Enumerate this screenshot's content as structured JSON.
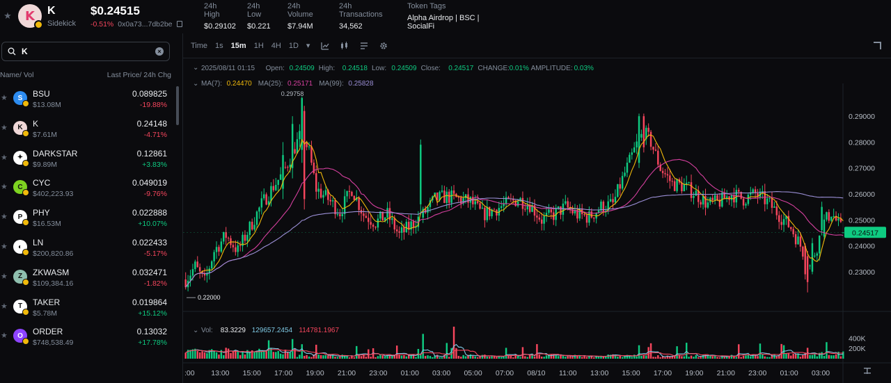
{
  "header": {
    "symbol": "K",
    "name": "Sidekick",
    "price": "$0.24515",
    "change": "-0.51%",
    "address": "0x0a73...7db2be",
    "stats": [
      {
        "label": "24h High",
        "value": "$0.29102"
      },
      {
        "label": "24h Low",
        "value": "$0.221"
      },
      {
        "label": "24h Volume",
        "value": "$7.94M"
      },
      {
        "label": "24h Transactions",
        "value": "34,562"
      },
      {
        "label": "Token Tags",
        "value": "Alpha Airdrop | BSC | SocialFi"
      }
    ]
  },
  "sidebar": {
    "search_value": "K",
    "col_left": "Name/ Vol",
    "col_right": "Last Price/ 24h Chg",
    "rows": [
      {
        "name": "BSU",
        "vol": "$13.08M",
        "price": "0.089825",
        "chg": "-19.88%",
        "up": false,
        "icon_color": "#2d8cf0",
        "icon": "S"
      },
      {
        "name": "K",
        "vol": "$7.61M",
        "price": "0.24148",
        "chg": "-4.71%",
        "up": false,
        "icon_color": "#f0d8d8",
        "icon": "K"
      },
      {
        "name": "DARKSTAR",
        "vol": "$9.89M",
        "price": "0.12861",
        "chg": "+3.83%",
        "up": true,
        "icon_color": "#ffffff",
        "icon": "✦"
      },
      {
        "name": "CYC",
        "vol": "$402,223.93",
        "price": "0.049019",
        "chg": "-9.76%",
        "up": false,
        "icon_color": "#7ed321",
        "icon": "C"
      },
      {
        "name": "PHY",
        "vol": "$16.53M",
        "price": "0.022888",
        "chg": "+10.07%",
        "up": true,
        "icon_color": "#ffffff",
        "icon": "P"
      },
      {
        "name": "LN",
        "vol": "$200,820.86",
        "price": "0.022433",
        "chg": "-5.17%",
        "up": false,
        "icon_color": "#ffffff",
        "icon": "◐"
      },
      {
        "name": "ZKWASM",
        "vol": "$109,384.16",
        "price": "0.032471",
        "chg": "-1.82%",
        "up": false,
        "icon_color": "#8fbfae",
        "icon": "Z"
      },
      {
        "name": "TAKER",
        "vol": "$5.78M",
        "price": "0.019864",
        "chg": "+15.12%",
        "up": true,
        "icon_color": "#ffffff",
        "icon": "T"
      },
      {
        "name": "ORDER",
        "vol": "$748,538.49",
        "price": "0.13032",
        "chg": "+17.78%",
        "up": true,
        "icon_color": "#8e44ff",
        "icon": "O"
      }
    ]
  },
  "toolbar": {
    "time_label": "Time",
    "intervals": [
      "1s",
      "15m",
      "1H",
      "4H",
      "1D"
    ],
    "active": "15m"
  },
  "ohlc": {
    "date": "2025/08/11 01:15",
    "open_label": "Open:",
    "open": "0.24509",
    "high_label": "High:",
    "high": "0.24518",
    "low_label": "Low:",
    "low": "0.24509",
    "close_label": "Close:",
    "close": "0.24517",
    "change_label": "CHANGE:",
    "change": "0.01%",
    "amp_label": "AMPLITUDE:",
    "amp": "0.03%"
  },
  "ma": {
    "ma7_label": "MA(7):",
    "ma7": "0.24470",
    "ma25_label": "MA(25):",
    "ma25": "0.25171",
    "ma99_label": "MA(99):",
    "ma99": "0.25828"
  },
  "vol": {
    "label": "Vol:",
    "v1": "83.3229",
    "v2": "129657.2454",
    "v3": "114781.1967"
  },
  "colors": {
    "up": "#0ecb81",
    "down": "#f6465d",
    "ma7": "#f0b90b",
    "ma25": "#d6409f",
    "ma99": "#9b8fd6",
    "vol_ma": "#7ec8e3"
  },
  "chart_data": {
    "type": "candlestick",
    "price_ticks": [
      "0.29000",
      "0.28000",
      "0.27000",
      "0.26000",
      "0.25000",
      "0.24000",
      "0.23000"
    ],
    "price_tick_values": [
      0.29,
      0.28,
      0.27,
      0.26,
      0.25,
      0.24,
      0.23
    ],
    "ylim": [
      0.2195,
      0.3005
    ],
    "current_price": "0.24517",
    "current_price_value": 0.24517,
    "high_marker": "0.29758",
    "high_marker_value": 0.29758,
    "low_marker": "0.22000",
    "low_marker_value": 0.22,
    "vol_ticks": [
      "400K",
      "200K"
    ],
    "vol_tick_values": [
      400000,
      200000
    ],
    "vol_max": 700000,
    "x_ticks": [
      ":00",
      "13:00",
      "15:00",
      "17:00",
      "19:00",
      "21:00",
      "23:00",
      "01:00",
      "03:00",
      "05:00",
      "07:00",
      "08/10",
      "11:00",
      "13:00",
      "15:00",
      "17:00",
      "19:00",
      "21:00",
      "23:00",
      "01:00",
      "03:00"
    ],
    "shape_points": [
      [
        0,
        0.227
      ],
      [
        4,
        0.232
      ],
      [
        8,
        0.226
      ],
      [
        12,
        0.238
      ],
      [
        17,
        0.244
      ],
      [
        22,
        0.238
      ],
      [
        27,
        0.247
      ],
      [
        32,
        0.256
      ],
      [
        37,
        0.263
      ],
      [
        41,
        0.268
      ],
      [
        45,
        0.276
      ],
      [
        49,
        0.284
      ],
      [
        52,
        0.276
      ],
      [
        55,
        0.262
      ],
      [
        60,
        0.258
      ],
      [
        65,
        0.253
      ],
      [
        70,
        0.262
      ],
      [
        75,
        0.252
      ],
      [
        80,
        0.249
      ],
      [
        85,
        0.252
      ],
      [
        90,
        0.244
      ],
      [
        95,
        0.248
      ],
      [
        100,
        0.252
      ],
      [
        105,
        0.258
      ],
      [
        110,
        0.259
      ],
      [
        115,
        0.258
      ],
      [
        120,
        0.257
      ],
      [
        125,
        0.252
      ],
      [
        130,
        0.254
      ],
      [
        135,
        0.256
      ],
      [
        140,
        0.258
      ],
      [
        145,
        0.256
      ],
      [
        150,
        0.25
      ],
      [
        155,
        0.252
      ],
      [
        160,
        0.255
      ],
      [
        165,
        0.252
      ],
      [
        170,
        0.251
      ],
      [
        175,
        0.255
      ],
      [
        180,
        0.256
      ],
      [
        185,
        0.268
      ],
      [
        190,
        0.279
      ],
      [
        193,
        0.284
      ],
      [
        196,
        0.28
      ],
      [
        200,
        0.27
      ],
      [
        205,
        0.264
      ],
      [
        210,
        0.263
      ],
      [
        215,
        0.26
      ],
      [
        220,
        0.256
      ],
      [
        225,
        0.257
      ],
      [
        230,
        0.26
      ],
      [
        235,
        0.258
      ],
      [
        240,
        0.26
      ],
      [
        245,
        0.257
      ],
      [
        250,
        0.252
      ],
      [
        255,
        0.247
      ],
      [
        259,
        0.24
      ],
      [
        263,
        0.232
      ],
      [
        266,
        0.24
      ],
      [
        269,
        0.249
      ],
      [
        272,
        0.253
      ],
      [
        275,
        0.248
      ],
      [
        277,
        0.2452
      ]
    ],
    "vol_hot_spots": [
      [
        45,
        380000
      ],
      [
        49,
        280000
      ],
      [
        55,
        270000
      ],
      [
        100,
        480000
      ],
      [
        113,
        620000
      ],
      [
        135,
        210000
      ],
      [
        191,
        260000
      ],
      [
        262,
        210000
      ],
      [
        270,
        320000
      ]
    ],
    "highlight_candles": [
      [
        41,
        0.262,
        0.275,
        0.258,
        0.28,
        true
      ],
      [
        45,
        0.27,
        0.287,
        0.266,
        0.29,
        true
      ],
      [
        49,
        0.277,
        0.297,
        0.272,
        0.2976,
        true
      ],
      [
        50,
        0.292,
        0.258,
        0.254,
        0.294,
        false
      ],
      [
        99,
        0.256,
        0.279,
        0.252,
        0.281,
        true
      ],
      [
        191,
        0.272,
        0.29,
        0.27,
        0.291,
        true
      ],
      [
        193,
        0.29,
        0.278,
        0.276,
        0.291,
        false
      ],
      [
        261,
        0.24,
        0.229,
        0.227,
        0.241,
        false
      ],
      [
        262,
        0.236,
        0.226,
        0.222,
        0.238,
        false
      ],
      [
        264,
        0.23,
        0.241,
        0.229,
        0.243,
        true
      ],
      [
        268,
        0.246,
        0.255,
        0.244,
        0.257,
        true
      ]
    ],
    "n_candles": 278
  }
}
